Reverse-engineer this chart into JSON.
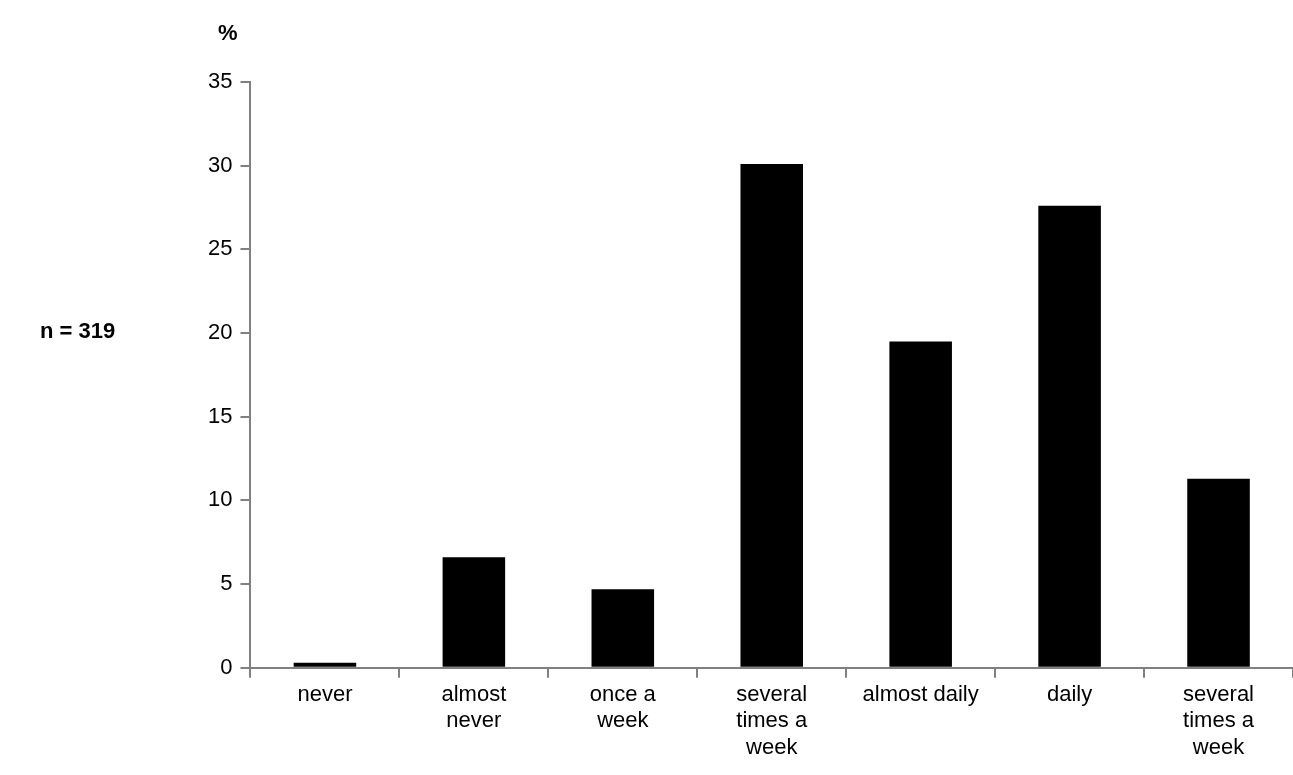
{
  "chart_data": {
    "type": "bar",
    "ylabel": "%",
    "annotations": [
      "n = 319"
    ],
    "categories": [
      "never",
      "almost\nnever",
      "once a\nweek",
      "several\ntimes a\nweek",
      "almost daily",
      "daily",
      "several\ntimes a\nweek"
    ],
    "values": [
      0.3,
      6.6,
      4.7,
      30.1,
      19.5,
      27.6,
      11.3
    ],
    "color": "#000000",
    "ylim": [
      0,
      35
    ],
    "yticks": [
      0,
      5,
      10,
      15,
      20,
      25,
      30,
      35
    ],
    "grid": false,
    "legend": false
  }
}
